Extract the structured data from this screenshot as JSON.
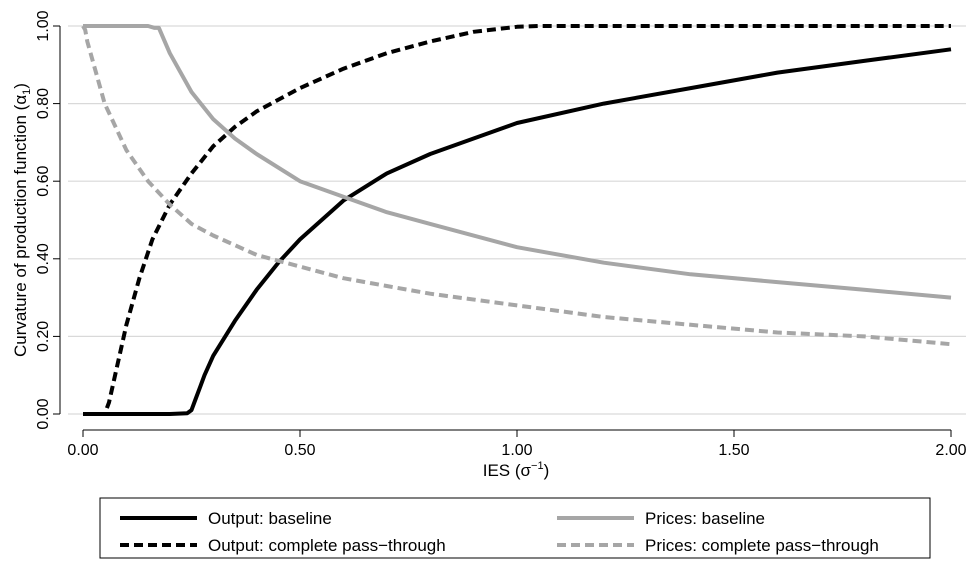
{
  "chart_data": {
    "type": "line",
    "xlabel_main": "IES (σ",
    "xlabel_sup": "−1",
    "xlabel_end": ")",
    "ylabel_main": "Curvature of production function (α",
    "ylabel_sub": "1",
    "ylabel_end": ")",
    "xlim": [
      0,
      2
    ],
    "ylim": [
      0,
      1
    ],
    "xticks": [
      0,
      0.5,
      1.0,
      1.5,
      2.0
    ],
    "xtick_labels": [
      "0.00",
      "0.50",
      "1.00",
      "1.50",
      "2.00"
    ],
    "yticks": [
      0,
      0.2,
      0.4,
      0.6,
      0.8,
      1.0
    ],
    "ytick_labels": [
      "0.00",
      "0.20",
      "0.40",
      "0.60",
      "0.80",
      "1.00"
    ],
    "grid": "horizontal",
    "legend_position": "bottom",
    "series": [
      {
        "name": "Output: baseline",
        "color": "#000000",
        "dash": "solid",
        "x": [
          0.0,
          0.1,
          0.2,
          0.24,
          0.25,
          0.26,
          0.27,
          0.28,
          0.3,
          0.35,
          0.4,
          0.45,
          0.5,
          0.6,
          0.7,
          0.8,
          0.9,
          1.0,
          1.2,
          1.4,
          1.6,
          1.8,
          2.0
        ],
        "y": [
          0.0,
          0.0,
          0.0,
          0.002,
          0.01,
          0.04,
          0.07,
          0.1,
          0.15,
          0.24,
          0.32,
          0.39,
          0.45,
          0.55,
          0.62,
          0.67,
          0.71,
          0.75,
          0.8,
          0.84,
          0.88,
          0.91,
          0.94
        ]
      },
      {
        "name": "Output: complete pass−through",
        "color": "#000000",
        "dash": "dashed",
        "x": [
          0.0,
          0.05,
          0.06,
          0.08,
          0.1,
          0.13,
          0.16,
          0.2,
          0.25,
          0.3,
          0.35,
          0.4,
          0.5,
          0.6,
          0.7,
          0.8,
          0.9,
          1.0,
          1.05,
          1.5,
          2.0
        ],
        "y": [
          0.0,
          0.0,
          0.03,
          0.13,
          0.23,
          0.35,
          0.45,
          0.54,
          0.62,
          0.69,
          0.74,
          0.78,
          0.84,
          0.89,
          0.93,
          0.96,
          0.985,
          0.998,
          1.0,
          1.0,
          1.0
        ]
      },
      {
        "name": "Prices: baseline",
        "color": "#a6a6a6",
        "dash": "solid",
        "x": [
          0.0,
          0.15,
          0.165,
          0.175,
          0.2,
          0.25,
          0.3,
          0.35,
          0.4,
          0.5,
          0.6,
          0.7,
          0.8,
          1.0,
          1.2,
          1.4,
          1.6,
          1.8,
          2.0
        ],
        "y": [
          1.0,
          1.0,
          0.995,
          0.995,
          0.93,
          0.83,
          0.76,
          0.71,
          0.67,
          0.6,
          0.56,
          0.52,
          0.49,
          0.43,
          0.39,
          0.36,
          0.34,
          0.32,
          0.3
        ]
      },
      {
        "name": "Prices: complete pass−through",
        "color": "#a6a6a6",
        "dash": "dashed",
        "x": [
          0.0,
          0.005,
          0.01,
          0.03,
          0.05,
          0.1,
          0.15,
          0.2,
          0.25,
          0.3,
          0.4,
          0.5,
          0.6,
          0.7,
          0.8,
          1.0,
          1.2,
          1.4,
          1.6,
          1.8,
          2.0
        ],
        "y": [
          1.0,
          0.99,
          0.96,
          0.88,
          0.8,
          0.68,
          0.6,
          0.54,
          0.49,
          0.46,
          0.41,
          0.38,
          0.35,
          0.33,
          0.31,
          0.28,
          0.25,
          0.23,
          0.21,
          0.2,
          0.18
        ]
      }
    ]
  }
}
